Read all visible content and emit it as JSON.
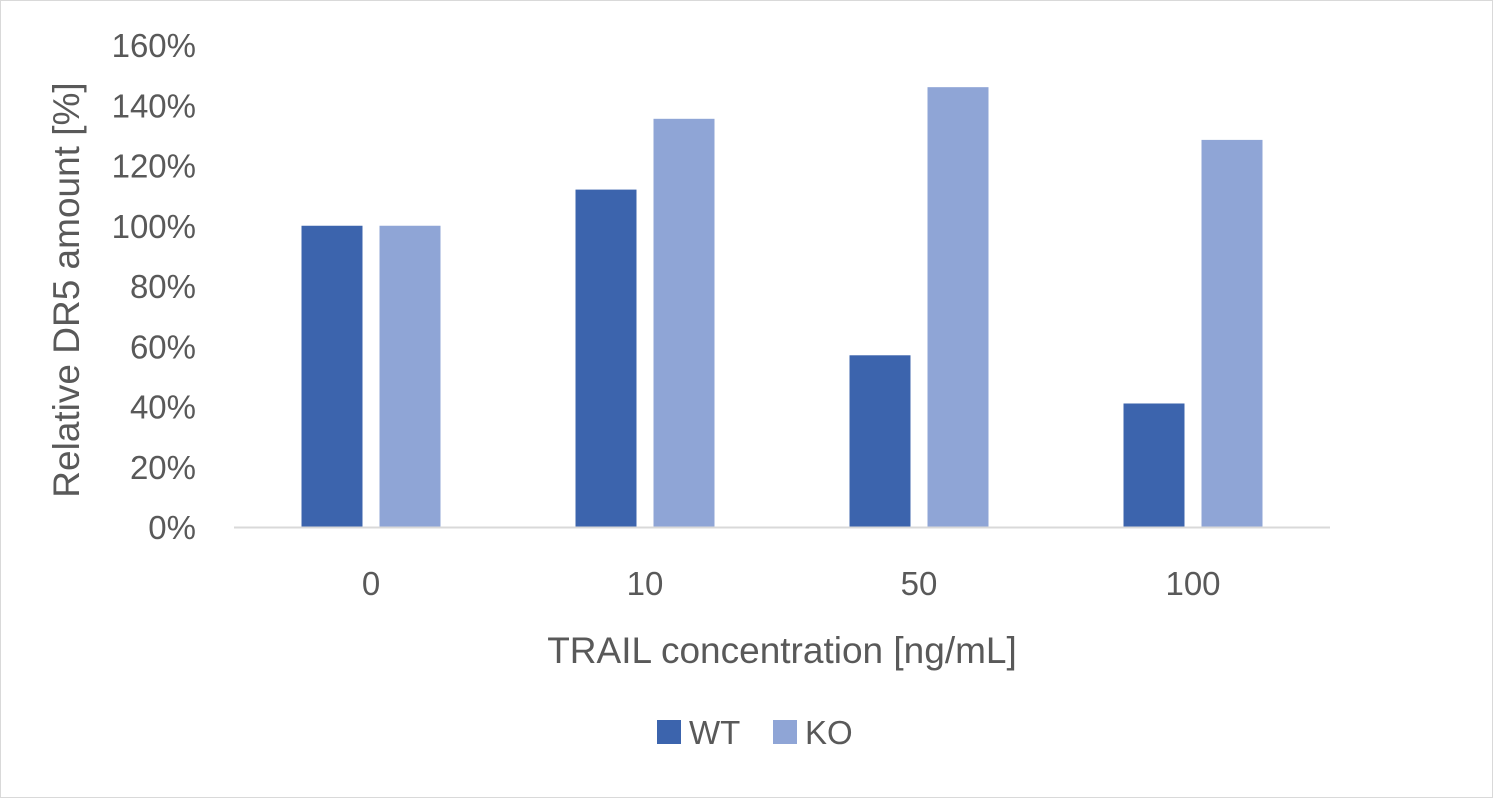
{
  "chart_data": {
    "type": "bar",
    "categories": [
      "0",
      "10",
      "50",
      "100"
    ],
    "series": [
      {
        "name": "WT",
        "color": "#3c64ad",
        "values": [
          100,
          112,
          57,
          41
        ]
      },
      {
        "name": "KO",
        "color": "#8fa5d6",
        "values": [
          100,
          135.5,
          146,
          128.5
        ]
      }
    ],
    "title": "",
    "xlabel": "TRAIL concentration [ng/mL]",
    "ylabel": "Relative DR5 amount [%]",
    "ylim": [
      0,
      160
    ],
    "yticks": [
      0,
      20,
      40,
      60,
      80,
      100,
      120,
      140,
      160
    ],
    "ytick_labels": [
      "0%",
      "20%",
      "40%",
      "60%",
      "80%",
      "100%",
      "120%",
      "140%",
      "160%"
    ],
    "grid": false,
    "legend": "bottom",
    "axis_color": "#d9d9d9"
  }
}
